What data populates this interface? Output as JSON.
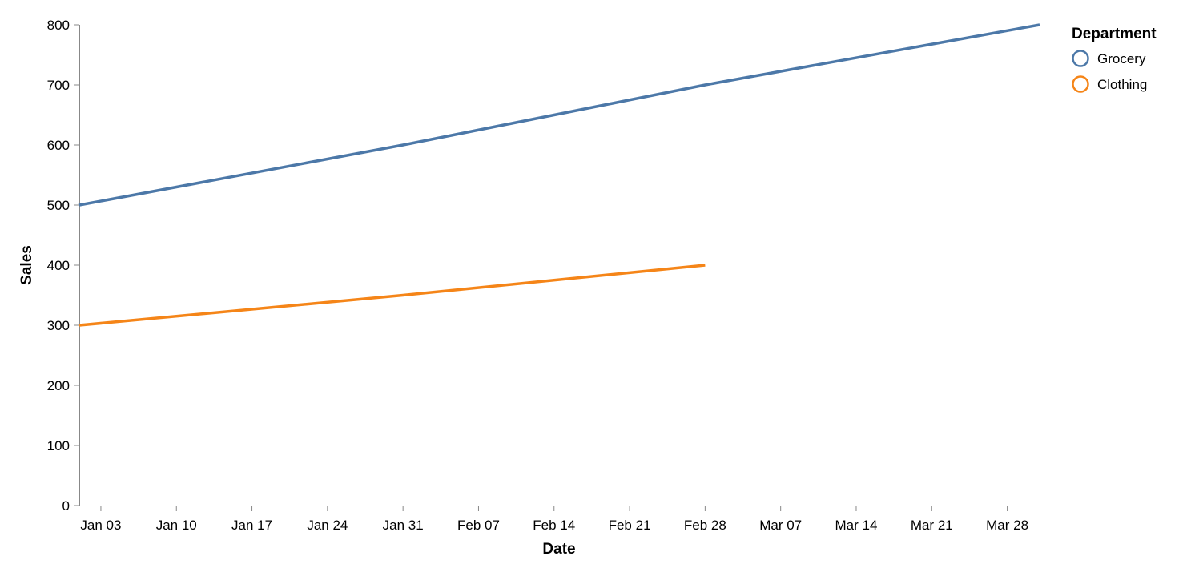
{
  "chart_data": {
    "type": "line",
    "title": "",
    "xlabel": "Date",
    "ylabel": "Sales",
    "x_ticks": [
      "Jan 03",
      "Jan 10",
      "Jan 17",
      "Jan 24",
      "Jan 31",
      "Feb 07",
      "Feb 14",
      "Feb 21",
      "Feb 28",
      "Mar 07",
      "Mar 14",
      "Mar 21",
      "Mar 28"
    ],
    "y_ticks": [
      "0",
      "100",
      "200",
      "300",
      "400",
      "500",
      "600",
      "700",
      "800"
    ],
    "ylim": [
      0,
      800
    ],
    "xlim": [
      "2023-01-01",
      "2023-03-31"
    ],
    "grid": false,
    "legend": {
      "title": "Department",
      "placement": "top-right"
    },
    "series": [
      {
        "name": "Grocery",
        "color": "#4c78a8",
        "points": [
          {
            "x": "2023-01-01",
            "y": 500
          },
          {
            "x": "2023-01-31",
            "y": 600
          },
          {
            "x": "2023-02-28",
            "y": 700
          },
          {
            "x": "2023-03-31",
            "y": 800
          }
        ]
      },
      {
        "name": "Clothing",
        "color": "#f58518",
        "points": [
          {
            "x": "2023-01-01",
            "y": 300
          },
          {
            "x": "2023-01-31",
            "y": 350
          },
          {
            "x": "2023-02-28",
            "y": 400
          }
        ]
      }
    ]
  }
}
